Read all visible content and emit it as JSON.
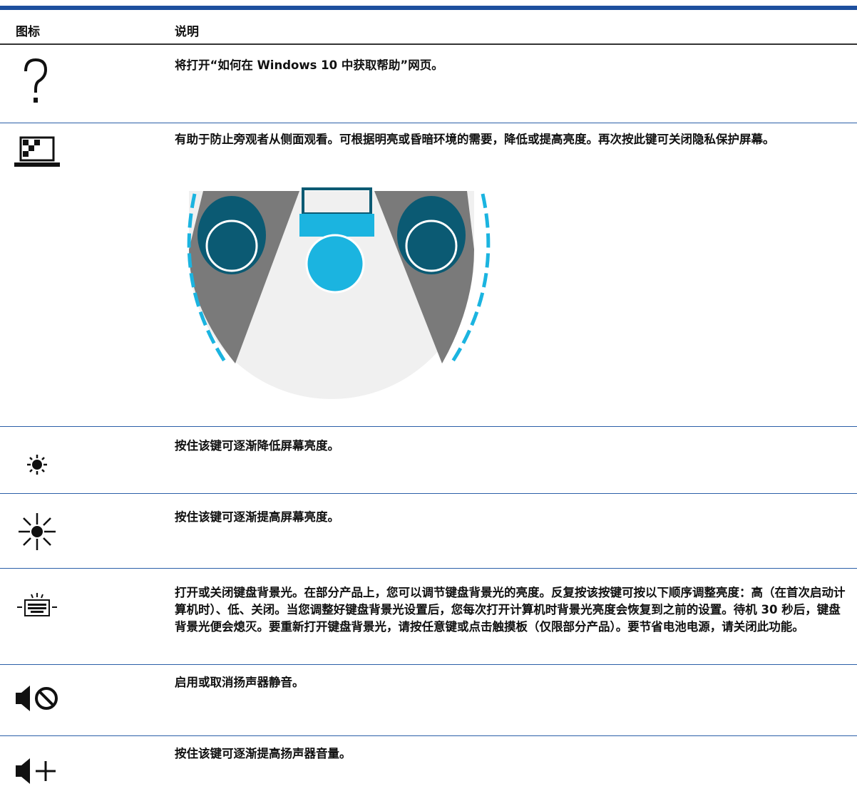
{
  "table": {
    "columns": [
      "图标",
      "说明"
    ],
    "rows": [
      {
        "description": "将打开“如何在 Windows 10 中获取帮助”网页。"
      },
      {
        "description": "有助于防止旁观者从侧面观看。可根据明亮或昏暗环境的需要，降低或提高亮度。再次按此键可关闭隐私保护屏幕。"
      },
      {
        "description": "按住该键可逐渐降低屏幕亮度。"
      },
      {
        "description": "按住该键可逐渐提高屏幕亮度。"
      },
      {
        "description": "打开或关闭键盘背景光。在部分产品上，您可以调节键盘背景光的亮度。反复按该按键可按以下顺序调整亮度：高（在首次启动计算机时）、低、关闭。当您调整好键盘背景光设置后，您每次打开计算机时背景光亮度会恢复到之前的设置。待机 30 秒后，键盘背景光便会熄灭。要重新打开键盘背景光，请按任意键或点击触摸板（仅限部分产品）。要节省电池电源，请关闭此功能。"
      },
      {
        "description": "启用或取消扬声器静音。"
      },
      {
        "description": "按住该键可逐渐提高扬声器音量。"
      }
    ]
  }
}
